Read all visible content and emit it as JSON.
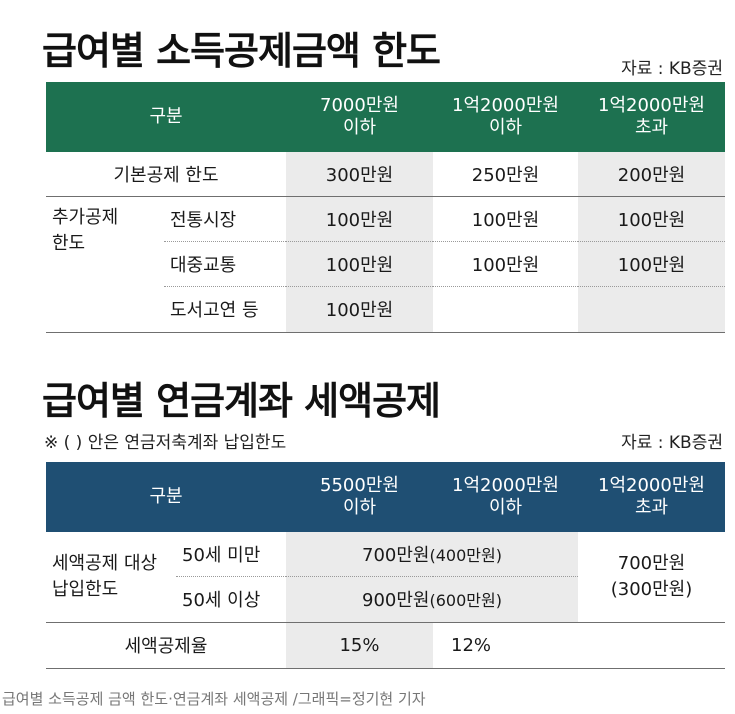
{
  "section1": {
    "title": "급여별 소득공제금액 한도",
    "source": "자료 : KB증권",
    "headers": {
      "category": "구분",
      "col1": [
        "7000만원",
        "이하"
      ],
      "col2": [
        "1억2000만원",
        "이하"
      ],
      "col3": [
        "1억2000만원",
        "초과"
      ]
    },
    "basic": {
      "label": "기본공제 한도",
      "values": [
        "300만원",
        "250만원",
        "200만원"
      ]
    },
    "additional": {
      "label": [
        "추가공제",
        "한도"
      ],
      "rows": [
        {
          "label": "전통시장",
          "values": [
            "100만원",
            "100만원",
            "100만원"
          ]
        },
        {
          "label": "대중교통",
          "values": [
            "100만원",
            "100만원",
            "100만원"
          ]
        },
        {
          "label": "도서고연 등",
          "values": [
            "100만원",
            "",
            ""
          ]
        }
      ]
    }
  },
  "section2": {
    "title": "급여별 연금계좌 세액공제",
    "note": "※ (  ) 안은 연금저축계좌 납입한도",
    "source": "자료 : KB증권",
    "headers": {
      "category": "구분",
      "col1": [
        "5500만원",
        "이하"
      ],
      "col2": [
        "1억2000만원",
        "이하"
      ],
      "col3": [
        "1억2000만원",
        "초과"
      ]
    },
    "limit": {
      "label": [
        "세액공제 대상",
        "납입한도"
      ],
      "rows": [
        {
          "label": "50세 미만",
          "value": "700만원",
          "sub": "(400만원)"
        },
        {
          "label": "50세 이상",
          "value": "900만원",
          "sub": "(600만원)"
        }
      ],
      "over": {
        "value": "700만원",
        "sub": "(300만원)"
      }
    },
    "rate": {
      "label": "세액공제율",
      "values": [
        "15%",
        "12%"
      ]
    }
  },
  "caption": "급여별 소득공제 금액 한도·연금계좌 세액공제 /그래픽=정기현 기자"
}
